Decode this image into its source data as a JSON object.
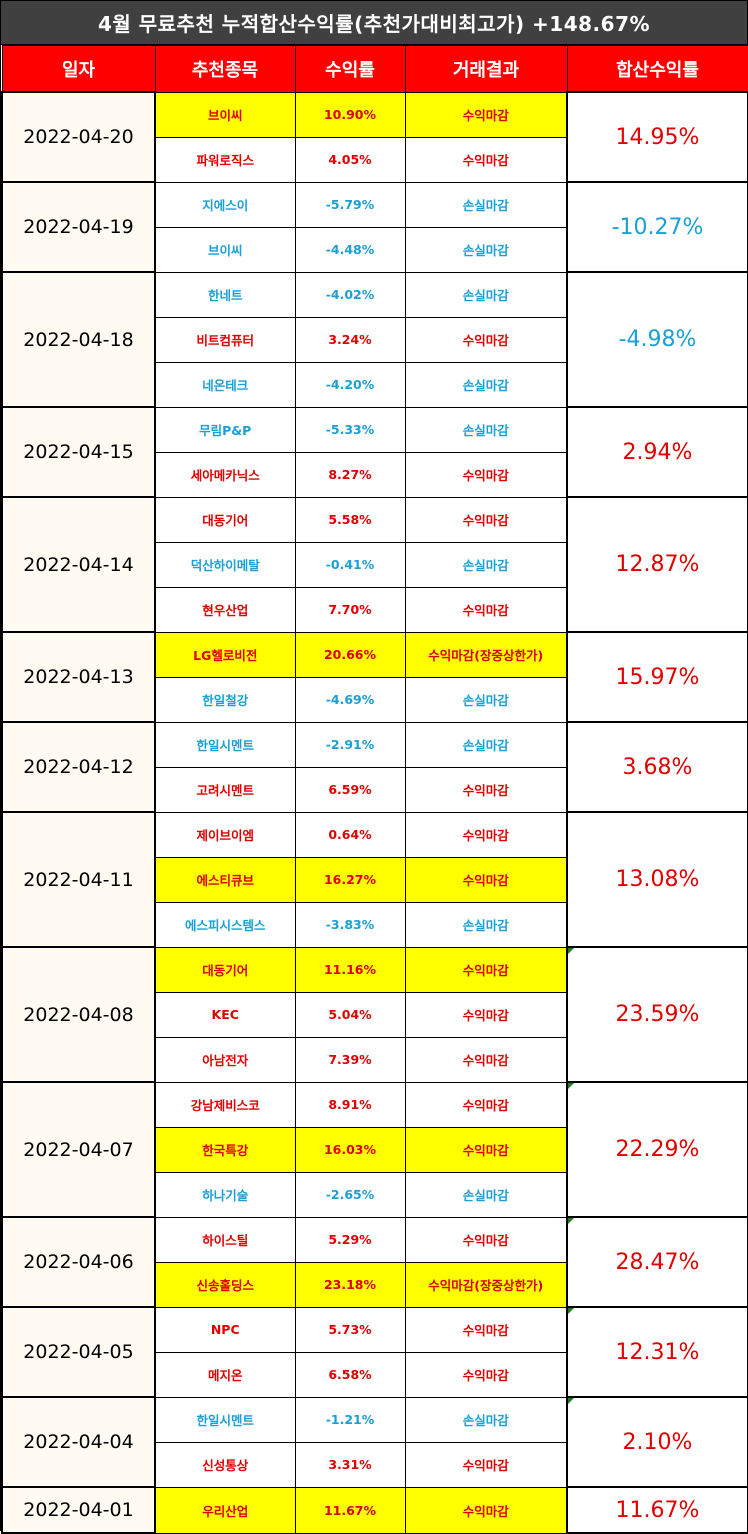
{
  "title": "4월 무료추천 누적합산수익률(추천가대비최고가) +148.67%",
  "headers": [
    "일자",
    "추천종목",
    "수익률",
    "거래결과",
    "합산수익률"
  ],
  "colors": {
    "profit": "#e00000",
    "loss": "#1aa0d6",
    "highlight": "#ffff00",
    "header_bg": "#ff0000",
    "banner_bg": "#404040"
  },
  "groups": [
    {
      "date": "2022-04-20",
      "total": "14.95%",
      "total_sign": "pos",
      "mark": false,
      "rows": [
        {
          "stock": "브이씨",
          "rate": "10.90%",
          "result": "수익마감",
          "sign": "pos",
          "highlight": true
        },
        {
          "stock": "파워로직스",
          "rate": "4.05%",
          "result": "수익마감",
          "sign": "pos",
          "highlight": false
        }
      ]
    },
    {
      "date": "2022-04-19",
      "total": "-10.27%",
      "total_sign": "neg",
      "mark": false,
      "rows": [
        {
          "stock": "지에스이",
          "rate": "-5.79%",
          "result": "손실마감",
          "sign": "neg",
          "highlight": false
        },
        {
          "stock": "브이씨",
          "rate": "-4.48%",
          "result": "손실마감",
          "sign": "neg",
          "highlight": false
        }
      ]
    },
    {
      "date": "2022-04-18",
      "total": "-4.98%",
      "total_sign": "neg",
      "mark": false,
      "rows": [
        {
          "stock": "한네트",
          "rate": "-4.02%",
          "result": "손실마감",
          "sign": "neg",
          "highlight": false
        },
        {
          "stock": "비트컴퓨터",
          "rate": "3.24%",
          "result": "수익마감",
          "sign": "pos",
          "highlight": false
        },
        {
          "stock": "네온테크",
          "rate": "-4.20%",
          "result": "손실마감",
          "sign": "neg",
          "highlight": false
        }
      ]
    },
    {
      "date": "2022-04-15",
      "total": "2.94%",
      "total_sign": "pos",
      "mark": false,
      "rows": [
        {
          "stock": "무림P&P",
          "rate": "-5.33%",
          "result": "손실마감",
          "sign": "neg",
          "highlight": false
        },
        {
          "stock": "세아메카닉스",
          "rate": "8.27%",
          "result": "수익마감",
          "sign": "pos",
          "highlight": false
        }
      ]
    },
    {
      "date": "2022-04-14",
      "total": "12.87%",
      "total_sign": "pos",
      "mark": false,
      "rows": [
        {
          "stock": "대동기어",
          "rate": "5.58%",
          "result": "수익마감",
          "sign": "pos",
          "highlight": false
        },
        {
          "stock": "덕산하이메탈",
          "rate": "-0.41%",
          "result": "손실마감",
          "sign": "neg",
          "highlight": false
        },
        {
          "stock": "현우산업",
          "rate": "7.70%",
          "result": "수익마감",
          "sign": "pos",
          "highlight": false
        }
      ]
    },
    {
      "date": "2022-04-13",
      "total": "15.97%",
      "total_sign": "pos",
      "mark": false,
      "rows": [
        {
          "stock": "LG헬로비전",
          "rate": "20.66%",
          "result": "수익마감(장중상한가)",
          "sign": "pos",
          "highlight": true
        },
        {
          "stock": "한일철강",
          "rate": "-4.69%",
          "result": "손실마감",
          "sign": "neg",
          "highlight": false
        }
      ]
    },
    {
      "date": "2022-04-12",
      "total": "3.68%",
      "total_sign": "pos",
      "mark": false,
      "rows": [
        {
          "stock": "한일시멘트",
          "rate": "-2.91%",
          "result": "손실마감",
          "sign": "neg",
          "highlight": false
        },
        {
          "stock": "고려시멘트",
          "rate": "6.59%",
          "result": "수익마감",
          "sign": "pos",
          "highlight": false
        }
      ]
    },
    {
      "date": "2022-04-11",
      "total": "13.08%",
      "total_sign": "pos",
      "mark": false,
      "rows": [
        {
          "stock": "제이브이엠",
          "rate": "0.64%",
          "result": "수익마감",
          "sign": "pos",
          "highlight": false
        },
        {
          "stock": "에스티큐브",
          "rate": "16.27%",
          "result": "수익마감",
          "sign": "pos",
          "highlight": true
        },
        {
          "stock": "에스피시스템스",
          "rate": "-3.83%",
          "result": "손실마감",
          "sign": "neg",
          "highlight": false
        }
      ]
    },
    {
      "date": "2022-04-08",
      "total": "23.59%",
      "total_sign": "pos",
      "mark": true,
      "rows": [
        {
          "stock": "대동기어",
          "rate": "11.16%",
          "result": "수익마감",
          "sign": "pos",
          "highlight": true
        },
        {
          "stock": "KEC",
          "rate": "5.04%",
          "result": "수익마감",
          "sign": "pos",
          "highlight": false
        },
        {
          "stock": "아남전자",
          "rate": "7.39%",
          "result": "수익마감",
          "sign": "pos",
          "highlight": false
        }
      ]
    },
    {
      "date": "2022-04-07",
      "total": "22.29%",
      "total_sign": "pos",
      "mark": true,
      "rows": [
        {
          "stock": "강남제비스코",
          "rate": "8.91%",
          "result": "수익마감",
          "sign": "pos",
          "highlight": false
        },
        {
          "stock": "한국특강",
          "rate": "16.03%",
          "result": "수익마감",
          "sign": "pos",
          "highlight": true
        },
        {
          "stock": "하나기술",
          "rate": "-2.65%",
          "result": "손실마감",
          "sign": "neg",
          "highlight": false
        }
      ]
    },
    {
      "date": "2022-04-06",
      "total": "28.47%",
      "total_sign": "pos",
      "mark": true,
      "rows": [
        {
          "stock": "하이스틸",
          "rate": "5.29%",
          "result": "수익마감",
          "sign": "pos",
          "highlight": false
        },
        {
          "stock": "신송홀딩스",
          "rate": "23.18%",
          "result": "수익마감(장중상한가)",
          "sign": "pos",
          "highlight": true
        }
      ]
    },
    {
      "date": "2022-04-05",
      "total": "12.31%",
      "total_sign": "pos",
      "mark": true,
      "rows": [
        {
          "stock": "NPC",
          "rate": "5.73%",
          "result": "수익마감",
          "sign": "pos",
          "highlight": false
        },
        {
          "stock": "메지온",
          "rate": "6.58%",
          "result": "수익마감",
          "sign": "pos",
          "highlight": false
        }
      ]
    },
    {
      "date": "2022-04-04",
      "total": "2.10%",
      "total_sign": "pos",
      "mark": true,
      "rows": [
        {
          "stock": "한일시멘트",
          "rate": "-1.21%",
          "result": "손실마감",
          "sign": "neg",
          "highlight": false
        },
        {
          "stock": "신성통상",
          "rate": "3.31%",
          "result": "수익마감",
          "sign": "pos",
          "highlight": false
        }
      ]
    },
    {
      "date": "2022-04-01",
      "total": "11.67%",
      "total_sign": "pos",
      "mark": false,
      "rows": [
        {
          "stock": "우리산업",
          "rate": "11.67%",
          "result": "수익마감",
          "sign": "pos",
          "highlight": true
        }
      ]
    }
  ]
}
